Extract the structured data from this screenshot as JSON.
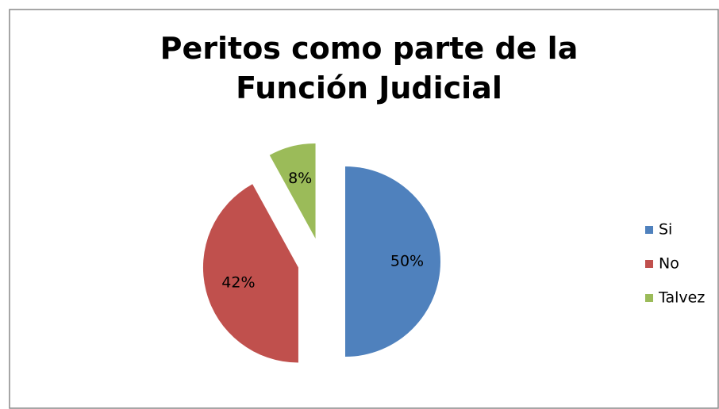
{
  "chart_data": {
    "type": "pie",
    "title": "Peritos como parte de la Función Judicial",
    "categories": [
      "Si",
      "No",
      "Talvez"
    ],
    "values": [
      50,
      42,
      8
    ],
    "value_labels": [
      "50%",
      "42%",
      "8%"
    ],
    "colors": [
      "#4f81bd",
      "#c0504d",
      "#9bbb59"
    ],
    "legend": "right"
  }
}
